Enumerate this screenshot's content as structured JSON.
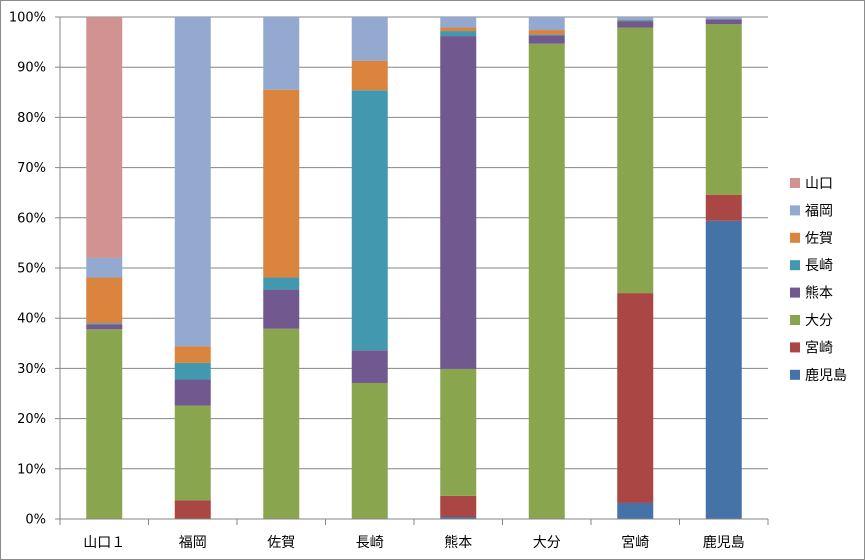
{
  "chart_data": {
    "type": "bar",
    "stacked": true,
    "percent": true,
    "categories": [
      "山口１",
      "福岡",
      "佐賀",
      "長崎",
      "熊本",
      "大分",
      "宮崎",
      "鹿児島"
    ],
    "series": [
      {
        "name": "鹿児島",
        "color": "#4572A7",
        "values": [
          0,
          0,
          0,
          0,
          0.4,
          0,
          3.2,
          59.4
        ]
      },
      {
        "name": "宮崎",
        "color": "#AA4643",
        "values": [
          0,
          3.7,
          0,
          0,
          4.2,
          0,
          41.8,
          5.2
        ]
      },
      {
        "name": "大分",
        "color": "#89A54E",
        "values": [
          37.8,
          18.9,
          37.9,
          27.1,
          25.3,
          94.7,
          52.9,
          34.0
        ]
      },
      {
        "name": "熊本",
        "color": "#71588F",
        "values": [
          1.0,
          5.2,
          7.8,
          6.5,
          66.3,
          1.6,
          1.2,
          0.9
        ]
      },
      {
        "name": "長崎",
        "color": "#4198AF",
        "values": [
          0.2,
          3.3,
          2.4,
          51.8,
          1.0,
          0.2,
          0.2,
          0
        ]
      },
      {
        "name": "佐賀",
        "color": "#DB843D",
        "values": [
          9.1,
          3.3,
          37.4,
          5.9,
          0.7,
          0.9,
          0.1,
          0
        ]
      },
      {
        "name": "福岡",
        "color": "#93A9CF",
        "values": [
          3.9,
          65.6,
          14.5,
          8.7,
          2.1,
          2.6,
          0.6,
          0.5
        ]
      },
      {
        "name": "山口",
        "color": "#D19392",
        "values": [
          48.0,
          0,
          0,
          0,
          0,
          0,
          0,
          0
        ]
      }
    ],
    "legend_order": [
      "山口",
      "福岡",
      "佐賀",
      "長崎",
      "熊本",
      "大分",
      "宮崎",
      "鹿児島"
    ],
    "ylim": [
      0,
      100
    ],
    "yticks": [
      "0%",
      "10%",
      "20%",
      "30%",
      "40%",
      "50%",
      "60%",
      "70%",
      "80%",
      "90%",
      "100%"
    ],
    "grid": true,
    "legend_position": "right",
    "title": "",
    "xlabel": "",
    "ylabel": ""
  }
}
